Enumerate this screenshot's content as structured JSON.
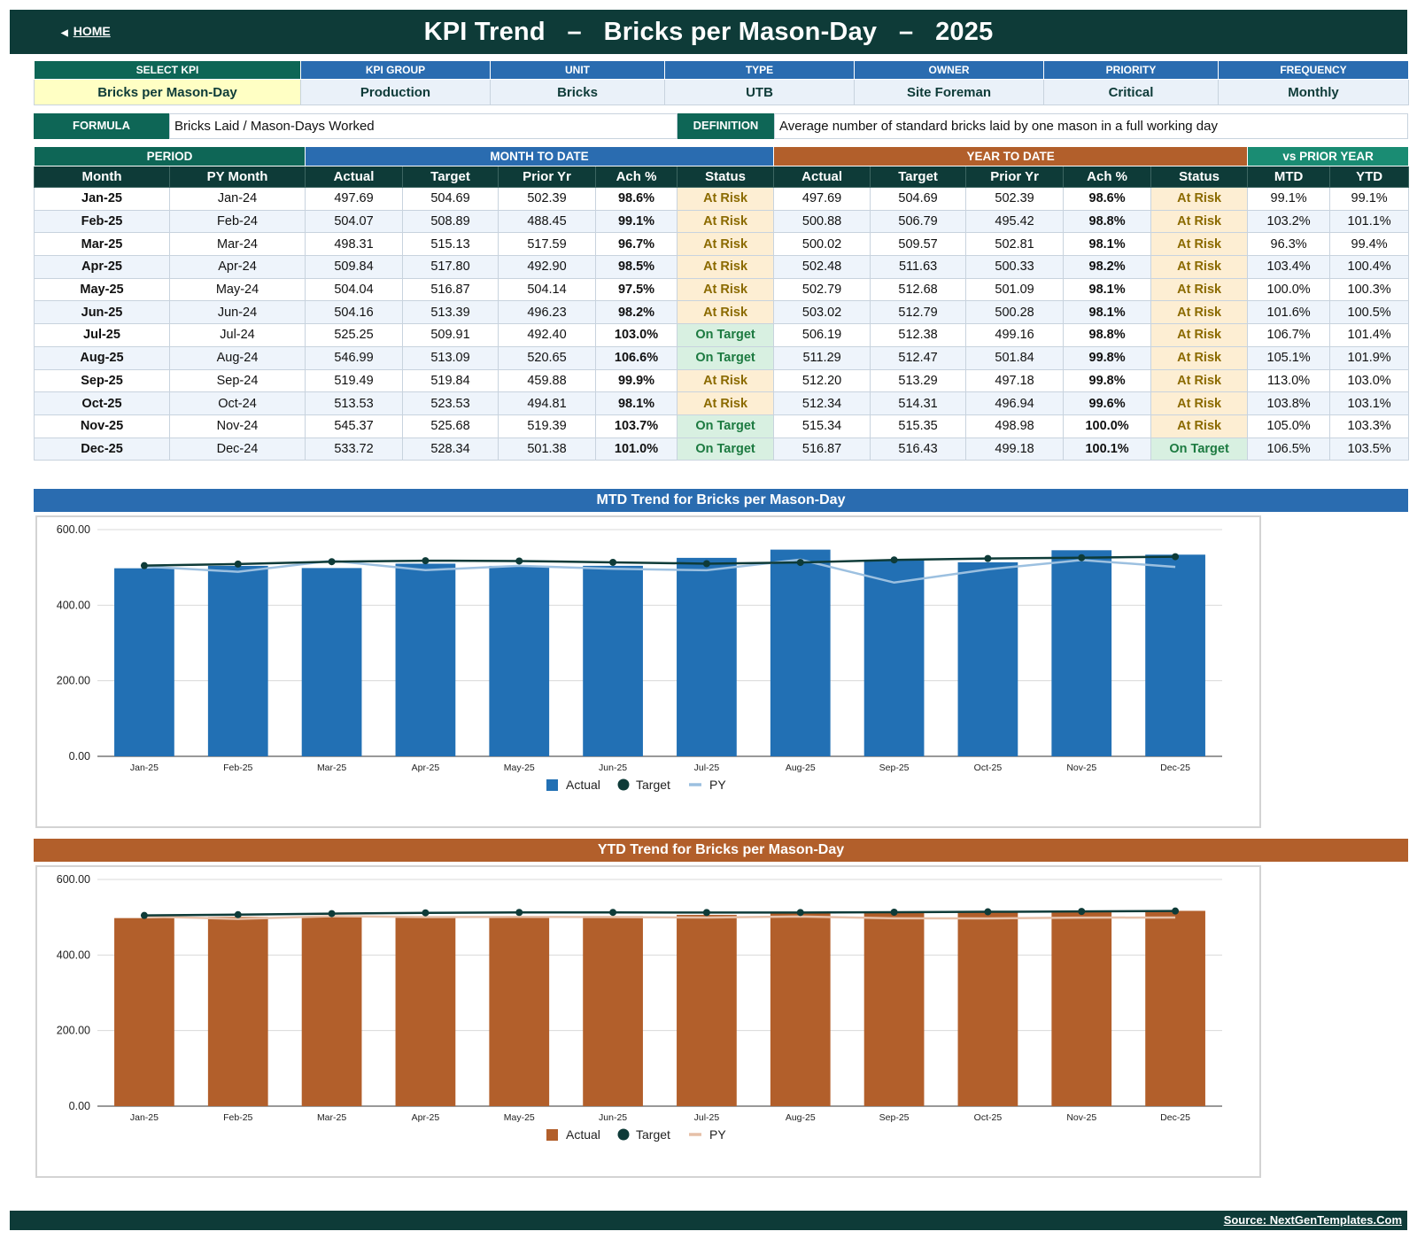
{
  "header": {
    "home_label": "HOME",
    "title": "KPI Trend   –   Bricks per Mason-Day   –   2025"
  },
  "kpi_meta": {
    "headers": [
      "SELECT KPI",
      "KPI GROUP",
      "UNIT",
      "TYPE",
      "OWNER",
      "PRIORITY",
      "FREQUENCY"
    ],
    "values": [
      "Bricks per Mason-Day",
      "Production",
      "Bricks",
      "UTB",
      "Site Foreman",
      "Critical",
      "Monthly"
    ]
  },
  "formula": {
    "label": "FORMULA",
    "value": "Bricks Laid / Mason-Days Worked",
    "def_label": "DEFINITION",
    "def_value": "Average number of standard bricks laid by one mason in a full working day"
  },
  "table": {
    "groups": [
      "PERIOD",
      "MONTH TO DATE",
      "YEAR TO DATE",
      "vs PRIOR YEAR"
    ],
    "columns": [
      "Month",
      "PY Month",
      "Actual",
      "Target",
      "Prior Yr",
      "Ach %",
      "Status",
      "Actual",
      "Target",
      "Prior Yr",
      "Ach %",
      "Status",
      "MTD",
      "YTD"
    ],
    "rows": [
      [
        "Jan-25",
        "Jan-24",
        "497.69",
        "504.69",
        "502.39",
        "98.6%",
        "At Risk",
        "497.69",
        "504.69",
        "502.39",
        "98.6%",
        "At Risk",
        "99.1%",
        "99.1%"
      ],
      [
        "Feb-25",
        "Feb-24",
        "504.07",
        "508.89",
        "488.45",
        "99.1%",
        "At Risk",
        "500.88",
        "506.79",
        "495.42",
        "98.8%",
        "At Risk",
        "103.2%",
        "101.1%"
      ],
      [
        "Mar-25",
        "Mar-24",
        "498.31",
        "515.13",
        "517.59",
        "96.7%",
        "At Risk",
        "500.02",
        "509.57",
        "502.81",
        "98.1%",
        "At Risk",
        "96.3%",
        "99.4%"
      ],
      [
        "Apr-25",
        "Apr-24",
        "509.84",
        "517.80",
        "492.90",
        "98.5%",
        "At Risk",
        "502.48",
        "511.63",
        "500.33",
        "98.2%",
        "At Risk",
        "103.4%",
        "100.4%"
      ],
      [
        "May-25",
        "May-24",
        "504.04",
        "516.87",
        "504.14",
        "97.5%",
        "At Risk",
        "502.79",
        "512.68",
        "501.09",
        "98.1%",
        "At Risk",
        "100.0%",
        "100.3%"
      ],
      [
        "Jun-25",
        "Jun-24",
        "504.16",
        "513.39",
        "496.23",
        "98.2%",
        "At Risk",
        "503.02",
        "512.79",
        "500.28",
        "98.1%",
        "At Risk",
        "101.6%",
        "100.5%"
      ],
      [
        "Jul-25",
        "Jul-24",
        "525.25",
        "509.91",
        "492.40",
        "103.0%",
        "On Target",
        "506.19",
        "512.38",
        "499.16",
        "98.8%",
        "At Risk",
        "106.7%",
        "101.4%"
      ],
      [
        "Aug-25",
        "Aug-24",
        "546.99",
        "513.09",
        "520.65",
        "106.6%",
        "On Target",
        "511.29",
        "512.47",
        "501.84",
        "99.8%",
        "At Risk",
        "105.1%",
        "101.9%"
      ],
      [
        "Sep-25",
        "Sep-24",
        "519.49",
        "519.84",
        "459.88",
        "99.9%",
        "At Risk",
        "512.20",
        "513.29",
        "497.18",
        "99.8%",
        "At Risk",
        "113.0%",
        "103.0%"
      ],
      [
        "Oct-25",
        "Oct-24",
        "513.53",
        "523.53",
        "494.81",
        "98.1%",
        "At Risk",
        "512.34",
        "514.31",
        "496.94",
        "99.6%",
        "At Risk",
        "103.8%",
        "103.1%"
      ],
      [
        "Nov-25",
        "Nov-24",
        "545.37",
        "525.68",
        "519.39",
        "103.7%",
        "On Target",
        "515.34",
        "515.35",
        "498.98",
        "100.0%",
        "At Risk",
        "105.0%",
        "103.3%"
      ],
      [
        "Dec-25",
        "Dec-24",
        "533.72",
        "528.34",
        "501.38",
        "101.0%",
        "On Target",
        "516.87",
        "516.43",
        "499.18",
        "100.1%",
        "On Target",
        "106.5%",
        "103.5%"
      ]
    ]
  },
  "colors": {
    "dark_teal": "#0e3b38",
    "mtd_blue": "#2a6cb0",
    "ytd_orange": "#b25f2b",
    "vs_prior_teal": "#1a8c73",
    "mtd_bar": "#2270b4",
    "ytd_bar": "#b25f2b",
    "target_line": "#0e3b38",
    "mtd_py_line": "#9cc0e0",
    "ytd_py_line": "#e6c0a8",
    "at_risk_bg": "#fdeed3",
    "on_target_bg": "#d8f0e1"
  },
  "chart_data": [
    {
      "type": "bar",
      "title": "MTD Trend for Bricks per Mason-Day",
      "categories": [
        "Jan-25",
        "Feb-25",
        "Mar-25",
        "Apr-25",
        "May-25",
        "Jun-25",
        "Jul-25",
        "Aug-25",
        "Sep-25",
        "Oct-25",
        "Nov-25",
        "Dec-25"
      ],
      "series": [
        {
          "name": "Actual",
          "kind": "bar",
          "values": [
            497.69,
            504.07,
            498.31,
            509.84,
            504.04,
            504.16,
            525.25,
            546.99,
            519.49,
            513.53,
            545.37,
            533.72
          ]
        },
        {
          "name": "Target",
          "kind": "line-marker",
          "values": [
            504.69,
            508.89,
            515.13,
            517.8,
            516.87,
            513.39,
            509.91,
            513.09,
            519.84,
            523.53,
            525.68,
            528.34
          ]
        },
        {
          "name": "PY",
          "kind": "line",
          "values": [
            502.39,
            488.45,
            517.59,
            492.9,
            504.14,
            496.23,
            492.4,
            520.65,
            459.88,
            494.81,
            519.39,
            501.38
          ]
        }
      ],
      "yticks": [
        "0.00",
        "200.00",
        "400.00",
        "600.00"
      ],
      "ylim": [
        0,
        600
      ],
      "grid": true,
      "legend": "bottom-center"
    },
    {
      "type": "bar",
      "title": "YTD Trend for Bricks per Mason-Day",
      "categories": [
        "Jan-25",
        "Feb-25",
        "Mar-25",
        "Apr-25",
        "May-25",
        "Jun-25",
        "Jul-25",
        "Aug-25",
        "Sep-25",
        "Oct-25",
        "Nov-25",
        "Dec-25"
      ],
      "series": [
        {
          "name": "Actual",
          "kind": "bar",
          "values": [
            497.69,
            500.88,
            500.02,
            502.48,
            502.79,
            503.02,
            506.19,
            511.29,
            512.2,
            512.34,
            515.34,
            516.87
          ]
        },
        {
          "name": "Target",
          "kind": "line-marker",
          "values": [
            504.69,
            506.79,
            509.57,
            511.63,
            512.68,
            512.79,
            512.38,
            512.47,
            513.29,
            514.31,
            515.35,
            516.43
          ]
        },
        {
          "name": "PY",
          "kind": "line",
          "values": [
            502.39,
            495.42,
            502.81,
            500.33,
            501.09,
            500.28,
            499.16,
            501.84,
            497.18,
            496.94,
            498.98,
            499.18
          ]
        }
      ],
      "yticks": [
        "0.00",
        "200.00",
        "400.00",
        "600.00"
      ],
      "ylim": [
        0,
        600
      ],
      "grid": true,
      "legend": "bottom-center"
    }
  ],
  "footer": {
    "source": "Source: NextGenTemplates.Com"
  }
}
